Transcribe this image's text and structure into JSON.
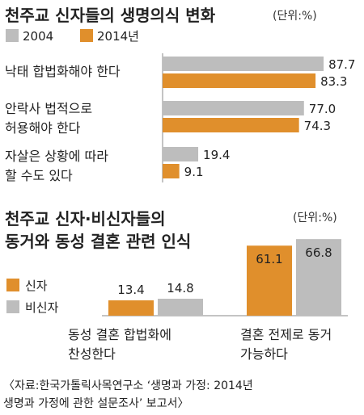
{
  "colors": {
    "y2004": "#bdbdbd",
    "y2014": "#e08f2c",
    "nonbeliever": "#bdbdbd",
    "believer": "#e08f2c",
    "baseline": "#888888"
  },
  "chart_data": [
    {
      "type": "bar",
      "orientation": "horizontal",
      "title": "천주교 신자들의 생명의식 변화",
      "unit": "(단위:%)",
      "categories": [
        [
          "낙태 합법화해야 한다"
        ],
        [
          "안락사 법적으로",
          "허용해야 한다"
        ],
        [
          "자살은 상황에 따라",
          "할 수도 있다"
        ]
      ],
      "series": [
        {
          "name": "2004",
          "values_text": [
            "87.7",
            "77.0",
            "19.4"
          ],
          "values": [
            87.7,
            77.0,
            19.4
          ]
        },
        {
          "name": "2014년",
          "values_text": [
            "83.3",
            "74.3",
            "9.1"
          ],
          "values": [
            83.3,
            74.3,
            9.1
          ]
        }
      ]
    },
    {
      "type": "bar",
      "orientation": "vertical",
      "title": [
        "천주교 신자·비신자들의",
        "동거와 동성 결혼 관련 인식"
      ],
      "unit": "(단위:%)",
      "categories": [
        [
          "동성 결혼 합법화에",
          "찬성한다"
        ],
        [
          "결혼 전제로 동거",
          "가능하다"
        ]
      ],
      "series": [
        {
          "name": "신자",
          "values_text": [
            "13.4",
            "61.1"
          ],
          "values": [
            13.4,
            61.1
          ]
        },
        {
          "name": "비신자",
          "values_text": [
            "14.8",
            "66.8"
          ],
          "values": [
            14.8,
            66.8
          ]
        }
      ]
    }
  ],
  "source": [
    "〈자료:한국가톨릭사목연구소 ‘생명과 가정: 2014년",
    "생명과 가정에 관한 설문조사’ 보고서〉"
  ]
}
